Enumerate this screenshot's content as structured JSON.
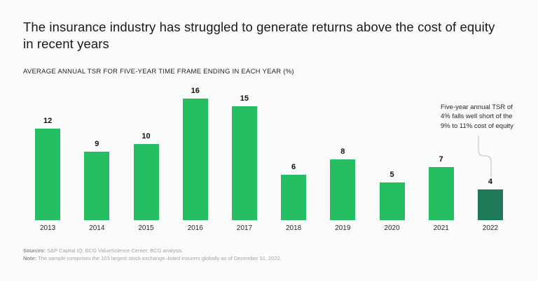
{
  "page": {
    "background_color": "#fbfbfb"
  },
  "header": {
    "title": "The insurance industry has struggled to generate returns above the cost of equity in recent years",
    "title_lines": [
      "The insurance industry has struggled to generate returns above the cost of equity",
      "in recent years"
    ],
    "subtitle": "AVERAGE ANNUAL TSR FOR FIVE-YEAR TIME FRAME ENDING IN EACH YEAR (%)"
  },
  "chart_data": {
    "type": "bar",
    "title": "AVERAGE ANNUAL TSR FOR FIVE-YEAR TIME FRAME ENDING IN EACH YEAR (%)",
    "categories": [
      "2013",
      "2014",
      "2015",
      "2016",
      "2017",
      "2018",
      "2019",
      "2020",
      "2021",
      "2022"
    ],
    "values": [
      12,
      9,
      10,
      16,
      15,
      6,
      8,
      5,
      7,
      4
    ],
    "xlabel": "",
    "ylabel": "",
    "ylim": [
      0,
      16
    ],
    "grid": false,
    "legend": false,
    "value_labels_shown": true,
    "bar_color": "#25be62",
    "highlight_bar_color": "#1f7a58",
    "highlight_category": "2022",
    "annotation": {
      "lines": [
        "Five-year annual TSR of",
        "4% falls well short of the",
        "9% to 11% cost of equity"
      ],
      "target_category": "2022"
    }
  },
  "footer": {
    "sources_label": "Sources:",
    "sources_text": " S&P Capital IQ; BCG ValueScience Center; BCG analysis.",
    "note_label": "Note:",
    "note_text": " The sample comprises the 103 largest stock exchange–listed insurers globally as of December 31, 2022."
  }
}
